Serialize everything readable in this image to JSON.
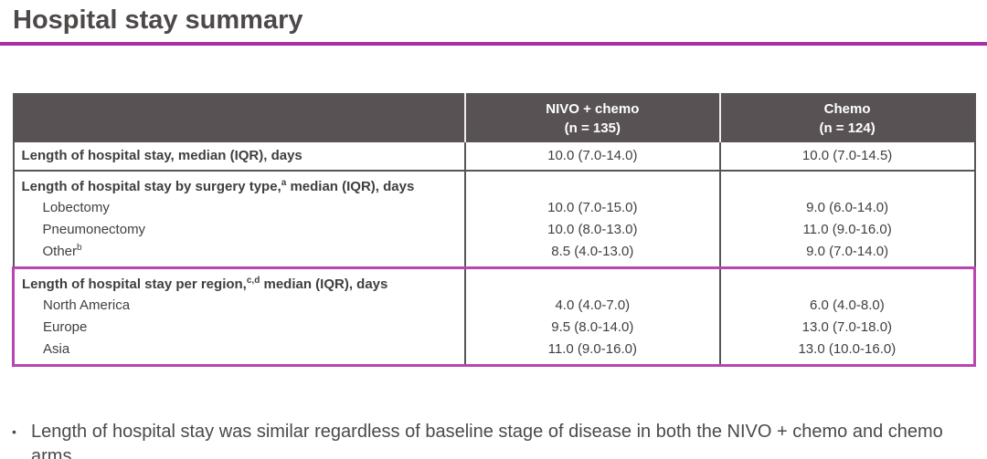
{
  "page": {
    "title": "Hospital stay summary"
  },
  "colors": {
    "accent": "#a62fa6",
    "region-border": "#b846b0",
    "header-bg": "#585254",
    "grid": "#55565a",
    "text": "#3f3f3f",
    "title": "#4d4949"
  },
  "table": {
    "columns": [
      {
        "label": "NIVO + chemo",
        "sub": "(n = 135)"
      },
      {
        "label": "Chemo",
        "sub": "(n = 124)"
      }
    ],
    "overall": {
      "label": "Length of hospital stay, median (IQR), days",
      "nivo": "10.0 (7.0-14.0)",
      "chemo": "10.0 (7.0-14.5)"
    },
    "surgery": {
      "header": {
        "pre": "Length of hospital stay by surgery type,",
        "sup": "a",
        "post": " median (IQR), days"
      },
      "rows": [
        {
          "label": "Lobectomy",
          "nivo": "10.0 (7.0-15.0)",
          "chemo": "9.0 (6.0-14.0)"
        },
        {
          "label": "Pneumonectomy",
          "nivo": "10.0 (8.0-13.0)",
          "chemo": "11.0 (9.0-16.0)"
        },
        {
          "label": "Other",
          "sup": "b",
          "nivo": "8.5 (4.0-13.0)",
          "chemo": "9.0 (7.0-14.0)"
        }
      ]
    },
    "region": {
      "header": {
        "pre": "Length of hospital stay per region,",
        "sup": "c,d",
        "post": " median (IQR), days"
      },
      "rows": [
        {
          "label": "North America",
          "nivo": "4.0 (4.0-7.0)",
          "chemo": "6.0 (4.0-8.0)"
        },
        {
          "label": "Europe",
          "nivo": "9.5 (8.0-14.0)",
          "chemo": "13.0 (7.0-18.0)"
        },
        {
          "label": "Asia",
          "nivo": "11.0 (9.0-16.0)",
          "chemo": "13.0 (10.0-16.0)"
        }
      ]
    }
  },
  "bullet": {
    "marker": "•",
    "text": "Length of hospital stay was similar regardless of baseline stage of disease in both the NIVO + chemo and chemo arms"
  }
}
